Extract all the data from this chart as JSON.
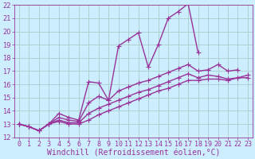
{
  "bg_color": "#cceeff",
  "grid_color": "#aacccc",
  "line_color": "#993399",
  "xlabel": "Windchill (Refroidissement éolien,°C)",
  "xlim": [
    -0.5,
    23.5
  ],
  "ylim": [
    12,
    22
  ],
  "xticks": [
    0,
    1,
    2,
    3,
    4,
    5,
    6,
    7,
    8,
    9,
    10,
    11,
    12,
    13,
    14,
    15,
    16,
    17,
    18,
    19,
    20,
    21,
    22,
    23
  ],
  "yticks": [
    12,
    13,
    14,
    15,
    16,
    17,
    18,
    19,
    20,
    21,
    22
  ],
  "lines": [
    {
      "x": [
        0,
        1,
        2,
        3,
        4,
        5,
        6,
        7,
        8,
        9,
        10,
        11,
        12,
        13,
        14,
        15,
        16,
        17,
        18
      ],
      "y": [
        13.0,
        12.8,
        12.5,
        13.0,
        13.8,
        13.5,
        13.3,
        16.2,
        16.1,
        14.8,
        18.9,
        19.4,
        19.9,
        17.3,
        19.0,
        21.0,
        21.5,
        22.1,
        18.4
      ]
    },
    {
      "x": [
        0,
        1,
        2,
        3,
        4,
        5,
        6,
        7,
        8,
        9,
        10,
        11,
        12,
        13,
        14,
        15,
        16,
        17,
        18,
        19,
        20,
        21,
        22
      ],
      "y": [
        13.0,
        12.8,
        12.5,
        13.0,
        13.5,
        13.3,
        13.2,
        14.6,
        15.1,
        14.8,
        15.5,
        15.8,
        16.1,
        16.3,
        16.6,
        16.9,
        17.2,
        17.5,
        17.0,
        17.1,
        17.5,
        17.0,
        17.1
      ]
    },
    {
      "x": [
        0,
        1,
        2,
        3,
        4,
        5,
        6,
        7,
        8,
        9,
        10,
        11,
        12,
        13,
        14,
        15,
        16,
        17,
        18,
        19,
        20,
        21,
        22,
        23
      ],
      "y": [
        13.0,
        12.8,
        12.5,
        13.0,
        13.3,
        13.1,
        13.1,
        13.8,
        14.2,
        14.5,
        14.8,
        15.1,
        15.4,
        15.6,
        15.9,
        16.2,
        16.5,
        16.8,
        16.5,
        16.7,
        16.6,
        16.4,
        16.5,
        16.7
      ]
    },
    {
      "x": [
        0,
        1,
        2,
        3,
        4,
        5,
        6,
        7,
        8,
        9,
        10,
        11,
        12,
        13,
        14,
        15,
        16,
        17,
        18,
        19,
        20,
        21,
        22,
        23
      ],
      "y": [
        13.0,
        12.8,
        12.5,
        13.0,
        13.2,
        13.0,
        13.0,
        13.3,
        13.7,
        14.0,
        14.3,
        14.6,
        14.9,
        15.2,
        15.5,
        15.7,
        16.0,
        16.3,
        16.3,
        16.4,
        16.4,
        16.3,
        16.5,
        16.5
      ]
    }
  ],
  "marker": "+",
  "markersize": 4,
  "linewidth": 1.0,
  "tick_labelsize": 6,
  "xlabel_fontsize": 7
}
